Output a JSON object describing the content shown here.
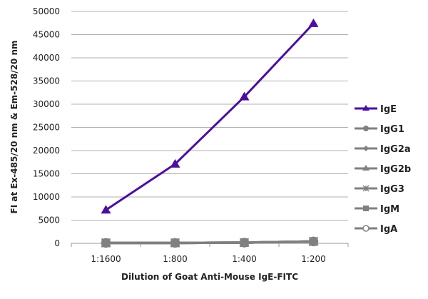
{
  "chart_data": {
    "type": "line",
    "title": "",
    "xlabel": "Dilution of Goat Anti-Mouse IgE-FITC",
    "ylabel": "FI at Ex-485/20 nm & Em-528/20 nm",
    "categories": [
      "1:1600",
      "1:800",
      "1:400",
      "1:200"
    ],
    "ylim": [
      0,
      50000
    ],
    "yticks": [
      0,
      5000,
      10000,
      15000,
      20000,
      25000,
      30000,
      35000,
      40000,
      45000,
      50000
    ],
    "grid": true,
    "legend": "right",
    "series": [
      {
        "name": "IgE",
        "values": [
          7200,
          17100,
          31600,
          47400
        ],
        "color": "#4b0f9e",
        "marker": "triangle"
      },
      {
        "name": "IgG1",
        "values": [
          100,
          100,
          150,
          400
        ],
        "color": "#808080",
        "marker": "circle"
      },
      {
        "name": "IgG2a",
        "values": [
          100,
          100,
          150,
          400
        ],
        "color": "#808080",
        "marker": "diamond"
      },
      {
        "name": "IgG2b",
        "values": [
          100,
          100,
          150,
          400
        ],
        "color": "#808080",
        "marker": "triangle"
      },
      {
        "name": "IgG3",
        "values": [
          100,
          100,
          150,
          400
        ],
        "color": "#808080",
        "marker": "star"
      },
      {
        "name": "IgM",
        "values": [
          100,
          100,
          150,
          400
        ],
        "color": "#808080",
        "marker": "square"
      },
      {
        "name": "IgA",
        "values": [
          100,
          100,
          150,
          400
        ],
        "color": "#808080",
        "marker": "open-circle"
      }
    ]
  }
}
